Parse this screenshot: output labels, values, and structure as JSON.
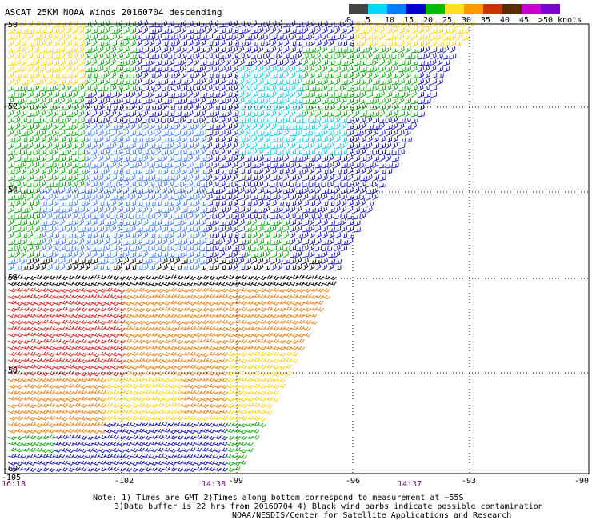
{
  "title": "ASCAT 25KM NOAA Winds 20160704 descending",
  "scale": {
    "labels": [
      "0",
      "5",
      "10",
      "15",
      "20",
      "25",
      "30",
      "35",
      "40",
      "45",
      ">50 knots"
    ],
    "colors": [
      "#444444",
      "#00d8ff",
      "#0080ff",
      "#0000cc",
      "#00bb00",
      "#ffdd22",
      "#ff9900",
      "#cc3300",
      "#5a2a00",
      "#cc00cc",
      "#7a00cc"
    ]
  },
  "lat_labels": [
    "-50",
    "-52",
    "-54",
    "-56",
    "-58",
    "-60"
  ],
  "lon_labels": [
    "-105",
    "-102",
    "-99",
    "-96",
    "-93",
    "-90"
  ],
  "time_labels": [
    "16:18",
    "14:38",
    "14:37"
  ],
  "notes": [
    "Note: 1) Times are GMT 2)Times along bottom correspond to measurement at ~55S",
    "3)Data buffer is 22 hrs from 20160704 4) Black wind barbs indicate possible contamination",
    "NOAA/NESDIS/Center for Satellite Applications and Research"
  ],
  "wind_colors": {
    "black": "#000000",
    "cyan": "#00ccee",
    "lightblue": "#3a7aff",
    "blue": "#1010c0",
    "green": "#00aa00",
    "yellow": "#ffd000",
    "orange": "#ee7700",
    "red": "#dd1a1a"
  }
}
